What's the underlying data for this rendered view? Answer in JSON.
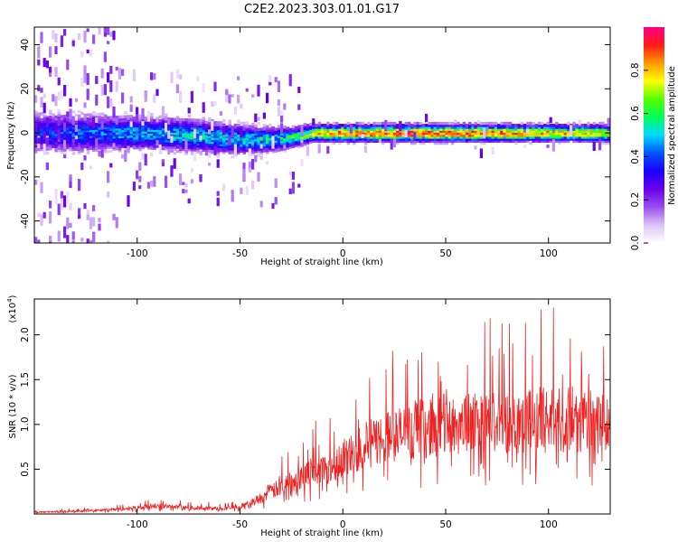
{
  "title": "C2E2.2023.303.01.01.G17",
  "chart_data": [
    {
      "type": "heatmap",
      "xlabel": "Height of straight line (km)",
      "ylabel": "Frequency (Hz)",
      "xlim": [
        -150,
        130
      ],
      "ylim": [
        -50,
        48
      ],
      "xticks": [
        -100,
        -50,
        0,
        50,
        100
      ],
      "yticks": [
        -40,
        -20,
        0,
        20,
        40
      ],
      "ridge": {
        "x": [
          -150,
          -125,
          -100,
          -75,
          -50,
          -35,
          -25,
          -15,
          0,
          25,
          50,
          75,
          100,
          130
        ],
        "frequency_hz": [
          0,
          0,
          0,
          -1,
          -3,
          -3,
          -2,
          0,
          0,
          0,
          0,
          0,
          0,
          0
        ],
        "halfwidth_hz": [
          10,
          9,
          8,
          8,
          7,
          6,
          5,
          4,
          4,
          4,
          4,
          4,
          4,
          4
        ],
        "amplitude": [
          0.35,
          0.4,
          0.45,
          0.5,
          0.5,
          0.5,
          0.55,
          0.7,
          0.82,
          0.85,
          0.85,
          0.8,
          0.75,
          0.7
        ]
      },
      "colorbar": {
        "label": "Normalized spectral amplitude",
        "range": [
          0.0,
          1.0
        ],
        "ticks": [
          "0.0",
          "0.2",
          "0.4",
          "0.6",
          "0.8"
        ],
        "colors": [
          "#ffffff",
          "#dcc4f7",
          "#9a4df2",
          "#6a00e8",
          "#1a00ff",
          "#0055ff",
          "#00d9ff",
          "#00ff55",
          "#55ff00",
          "#ffff00",
          "#ff9900",
          "#ff1a1a",
          "#ff0080"
        ]
      }
    },
    {
      "type": "line",
      "xlabel": "Height of straight line (km)",
      "ylabel": "SNR (10 * v/v)",
      "ylabel_scale": "(x10",
      "ylabel_scale_exp": "4",
      "ylabel_scale_close": ")",
      "xlim": [
        -150,
        130
      ],
      "ylim": [
        0,
        2.4
      ],
      "xticks": [
        -100,
        -50,
        0,
        50,
        100
      ],
      "yticks": [
        "0.5",
        "1.0",
        "1.5",
        "2.0"
      ],
      "line_color": "#ee2222",
      "series": [
        {
          "x": [
            -150,
            -130,
            -110,
            -100,
            -90,
            -80,
            -60,
            -50,
            -45,
            -40,
            -35,
            -30,
            -25,
            -20,
            -15,
            -10,
            -5,
            0,
            5,
            10,
            15,
            20,
            25,
            30,
            40,
            50,
            60,
            70,
            80,
            90,
            100,
            110,
            120,
            130
          ],
          "values": [
            0.02,
            0.03,
            0.05,
            0.07,
            0.09,
            0.07,
            0.06,
            0.08,
            0.12,
            0.18,
            0.25,
            0.3,
            0.38,
            0.42,
            0.48,
            0.5,
            0.55,
            0.62,
            0.68,
            0.75,
            0.8,
            0.85,
            0.88,
            0.9,
            0.95,
            1.0,
            1.0,
            1.02,
            1.03,
            1.05,
            1.05,
            1.05,
            1.03,
            1.0
          ]
        }
      ]
    }
  ]
}
